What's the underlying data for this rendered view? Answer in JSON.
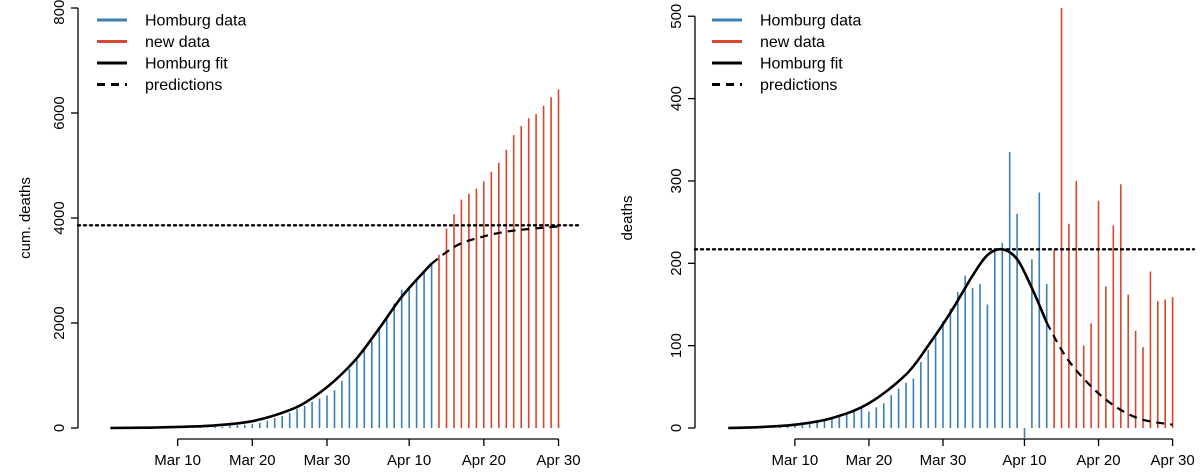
{
  "chart_data": [
    {
      "type": "bar",
      "title": "",
      "xlabel": "",
      "ylabel": "cum. deaths",
      "x_ticks": [
        "Mar 10",
        "Mar 20",
        "Mar 30",
        "Apr 10",
        "Apr 20",
        "Apr 30"
      ],
      "y_ticks": [
        "0",
        "2000",
        "4000",
        "6000",
        "8000"
      ],
      "xlim": [
        "2020-02-27",
        "2020-05-01"
      ],
      "ylim": [
        0,
        8000
      ],
      "reference_line": 3860,
      "legend_position": "top-left",
      "legend": [
        {
          "label": "Homburg data",
          "color": "#3b7fb5",
          "style": "solid"
        },
        {
          "label": "new data",
          "color": "#d9462e",
          "style": "solid"
        },
        {
          "label": "Homburg fit",
          "color": "#000000",
          "style": "solid"
        },
        {
          "label": "predictions",
          "color": "#000000",
          "style": "dashed"
        }
      ],
      "homburg_data": {
        "x": [
          "2020-03-06",
          "2020-03-07",
          "2020-03-08",
          "2020-03-09",
          "2020-03-10",
          "2020-03-11",
          "2020-03-12",
          "2020-03-13",
          "2020-03-14",
          "2020-03-15",
          "2020-03-16",
          "2020-03-17",
          "2020-03-18",
          "2020-03-19",
          "2020-03-20",
          "2020-03-21",
          "2020-03-22",
          "2020-03-23",
          "2020-03-24",
          "2020-03-25",
          "2020-03-26",
          "2020-03-27",
          "2020-03-28",
          "2020-03-29",
          "2020-03-30",
          "2020-03-31",
          "2020-04-01",
          "2020-04-02",
          "2020-04-03",
          "2020-04-04",
          "2020-04-05",
          "2020-04-06",
          "2020-04-07",
          "2020-04-08",
          "2020-04-09",
          "2020-04-10",
          "2020-04-11",
          "2020-04-12",
          "2020-04-13"
        ],
        "y": [
          1,
          1,
          1,
          2,
          4,
          4,
          6,
          10,
          10,
          20,
          25,
          40,
          55,
          60,
          80,
          100,
          140,
          190,
          230,
          290,
          360,
          420,
          500,
          560,
          620,
          720,
          900,
          1120,
          1300,
          1510,
          1650,
          1930,
          2130,
          2370,
          2630,
          2700,
          2800,
          2990,
          3150
        ]
      },
      "new_data": {
        "x": [
          "2020-04-14",
          "2020-04-15",
          "2020-04-16",
          "2020-04-17",
          "2020-04-18",
          "2020-04-19",
          "2020-04-20",
          "2020-04-21",
          "2020-04-22",
          "2020-04-23",
          "2020-04-24",
          "2020-04-25",
          "2020-04-26",
          "2020-04-27",
          "2020-04-28",
          "2020-04-29",
          "2020-04-30"
        ],
        "y": [
          3300,
          3800,
          4070,
          4350,
          4460,
          4560,
          4700,
          4880,
          5050,
          5300,
          5580,
          5750,
          5900,
          5980,
          6140,
          6300,
          6450
        ]
      },
      "fit": {
        "x": [
          "2020-03-01",
          "2020-03-05",
          "2020-03-10",
          "2020-03-15",
          "2020-03-20",
          "2020-03-25",
          "2020-03-28",
          "2020-03-31",
          "2020-04-03",
          "2020-04-06",
          "2020-04-09",
          "2020-04-12",
          "2020-04-13"
        ],
        "y": [
          0,
          5,
          20,
          50,
          130,
          340,
          570,
          900,
          1330,
          1900,
          2500,
          2980,
          3130
        ]
      },
      "predictions": {
        "x": [
          "2020-04-13",
          "2020-04-15",
          "2020-04-17",
          "2020-04-20",
          "2020-04-23",
          "2020-04-26",
          "2020-04-30"
        ],
        "y": [
          3130,
          3350,
          3520,
          3650,
          3740,
          3790,
          3840
        ]
      }
    },
    {
      "type": "bar",
      "title": "",
      "xlabel": "",
      "ylabel": "deaths",
      "x_ticks": [
        "Mar 10",
        "Mar 20",
        "Mar 30",
        "Apr 10",
        "Apr 20",
        "Apr 30"
      ],
      "y_ticks": [
        "0",
        "100",
        "200",
        "300",
        "400",
        "500"
      ],
      "xlim": [
        "2020-02-27",
        "2020-05-01"
      ],
      "ylim": [
        0,
        510
      ],
      "reference_line": 217,
      "legend_position": "top-left",
      "legend": [
        {
          "label": "Homburg data",
          "color": "#3b7fb5",
          "style": "solid"
        },
        {
          "label": "new data",
          "color": "#d9462e",
          "style": "solid"
        },
        {
          "label": "Homburg fit",
          "color": "#000000",
          "style": "solid"
        },
        {
          "label": "predictions",
          "color": "#000000",
          "style": "dashed"
        }
      ],
      "homburg_data": {
        "x": [
          "2020-03-06",
          "2020-03-07",
          "2020-03-08",
          "2020-03-09",
          "2020-03-10",
          "2020-03-11",
          "2020-03-12",
          "2020-03-13",
          "2020-03-14",
          "2020-03-15",
          "2020-03-16",
          "2020-03-17",
          "2020-03-18",
          "2020-03-19",
          "2020-03-20",
          "2020-03-21",
          "2020-03-22",
          "2020-03-23",
          "2020-03-24",
          "2020-03-25",
          "2020-03-26",
          "2020-03-27",
          "2020-03-28",
          "2020-03-29",
          "2020-03-30",
          "2020-03-31",
          "2020-04-01",
          "2020-04-02",
          "2020-04-03",
          "2020-04-04",
          "2020-04-05",
          "2020-04-06",
          "2020-04-07",
          "2020-04-08",
          "2020-04-09",
          "2020-04-10",
          "2020-04-11",
          "2020-04-12",
          "2020-04-13"
        ],
        "y": [
          1,
          1,
          2,
          3,
          4,
          4,
          5,
          8,
          10,
          12,
          14,
          18,
          22,
          26,
          20,
          25,
          30,
          40,
          48,
          55,
          60,
          80,
          95,
          110,
          130,
          145,
          165,
          185,
          170,
          175,
          150,
          215,
          225,
          335,
          260,
          -12,
          205,
          286,
          175
        ]
      },
      "new_data": {
        "x": [
          "2020-04-14",
          "2020-04-15",
          "2020-04-16",
          "2020-04-17",
          "2020-04-18",
          "2020-04-19",
          "2020-04-20",
          "2020-04-21",
          "2020-04-22",
          "2020-04-23",
          "2020-04-24",
          "2020-04-25",
          "2020-04-26",
          "2020-04-27",
          "2020-04-28",
          "2020-04-29",
          "2020-04-30"
        ],
        "y": [
          216,
          510,
          248,
          300,
          100,
          127,
          276,
          172,
          246,
          296,
          162,
          118,
          98,
          190,
          154,
          156,
          159
        ]
      },
      "fit": {
        "x": [
          "2020-03-01",
          "2020-03-05",
          "2020-03-10",
          "2020-03-15",
          "2020-03-20",
          "2020-03-25",
          "2020-03-28",
          "2020-03-31",
          "2020-04-03",
          "2020-04-05",
          "2020-04-07",
          "2020-04-09",
          "2020-04-11",
          "2020-04-13"
        ],
        "y": [
          0,
          1,
          4,
          12,
          30,
          65,
          100,
          140,
          185,
          210,
          217,
          205,
          170,
          128
        ]
      },
      "predictions": {
        "x": [
          "2020-04-13",
          "2020-04-15",
          "2020-04-17",
          "2020-04-20",
          "2020-04-23",
          "2020-04-26",
          "2020-04-30"
        ],
        "y": [
          128,
          95,
          70,
          42,
          22,
          10,
          4
        ]
      }
    }
  ]
}
